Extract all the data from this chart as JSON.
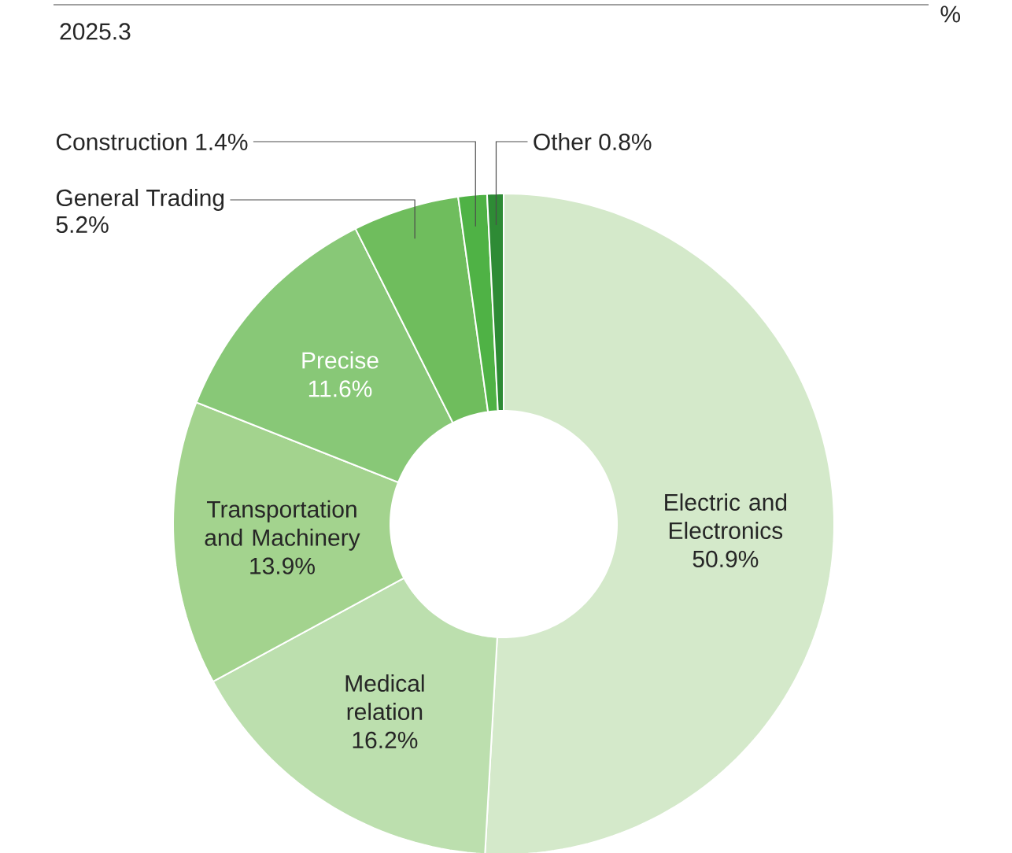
{
  "chart_data": {
    "type": "donut",
    "title": "2025.3",
    "annotations": [
      "%"
    ],
    "categories": [
      "Electric and Electronics",
      "Medical relation",
      "Transportation and Machinery",
      "Precise",
      "General Trading",
      "Construction",
      "Other"
    ],
    "values": [
      50.9,
      16.2,
      13.9,
      11.6,
      5.2,
      1.4,
      0.8
    ],
    "value_labels": [
      "50.9%",
      "16.2%",
      "13.9%",
      "11.6%",
      "5.2%",
      "1.4%",
      "0.8%"
    ],
    "colors": [
      "#d4e9ca",
      "#bcdfae",
      "#a3d38e",
      "#88c877",
      "#6fbd5d",
      "#4fb245",
      "#2e8b35"
    ]
  }
}
